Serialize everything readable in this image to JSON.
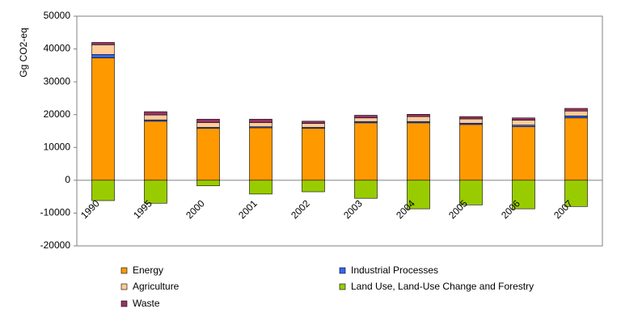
{
  "chart_data": {
    "type": "stacked-bar",
    "y_label": "Gg CO2-eq",
    "categories": [
      "1990",
      "1995",
      "2000",
      "2001",
      "2002",
      "2003",
      "2004",
      "2005",
      "2006",
      "2007"
    ],
    "series": [
      {
        "name": "Energy",
        "color": "#ff9900",
        "values": [
          37300,
          18000,
          15800,
          16000,
          15800,
          17500,
          17500,
          17000,
          16300,
          19000
        ]
      },
      {
        "name": "Industrial Processes",
        "color": "#3366ff",
        "values": [
          1000,
          400,
          300,
          300,
          300,
          400,
          400,
          400,
          500,
          600
        ]
      },
      {
        "name": "Agriculture",
        "color": "#ffcc99",
        "values": [
          3000,
          1500,
          1500,
          1300,
          1200,
          1100,
          1500,
          1300,
          1500,
          1500
        ]
      },
      {
        "name": "Land Use, Land-Use Change and Forestry",
        "color": "#99cc00",
        "values": [
          -6200,
          -7000,
          -1700,
          -4200,
          -3500,
          -5500,
          -8700,
          -7500,
          -8700,
          -8000
        ]
      },
      {
        "name": "Waste",
        "color": "#993366",
        "values": [
          700,
          1000,
          1000,
          1000,
          700,
          800,
          700,
          700,
          700,
          800
        ]
      }
    ],
    "ylim": [
      -20000,
      50000
    ],
    "yticks": [
      -20000,
      -10000,
      0,
      10000,
      20000,
      30000,
      40000,
      50000
    ]
  }
}
